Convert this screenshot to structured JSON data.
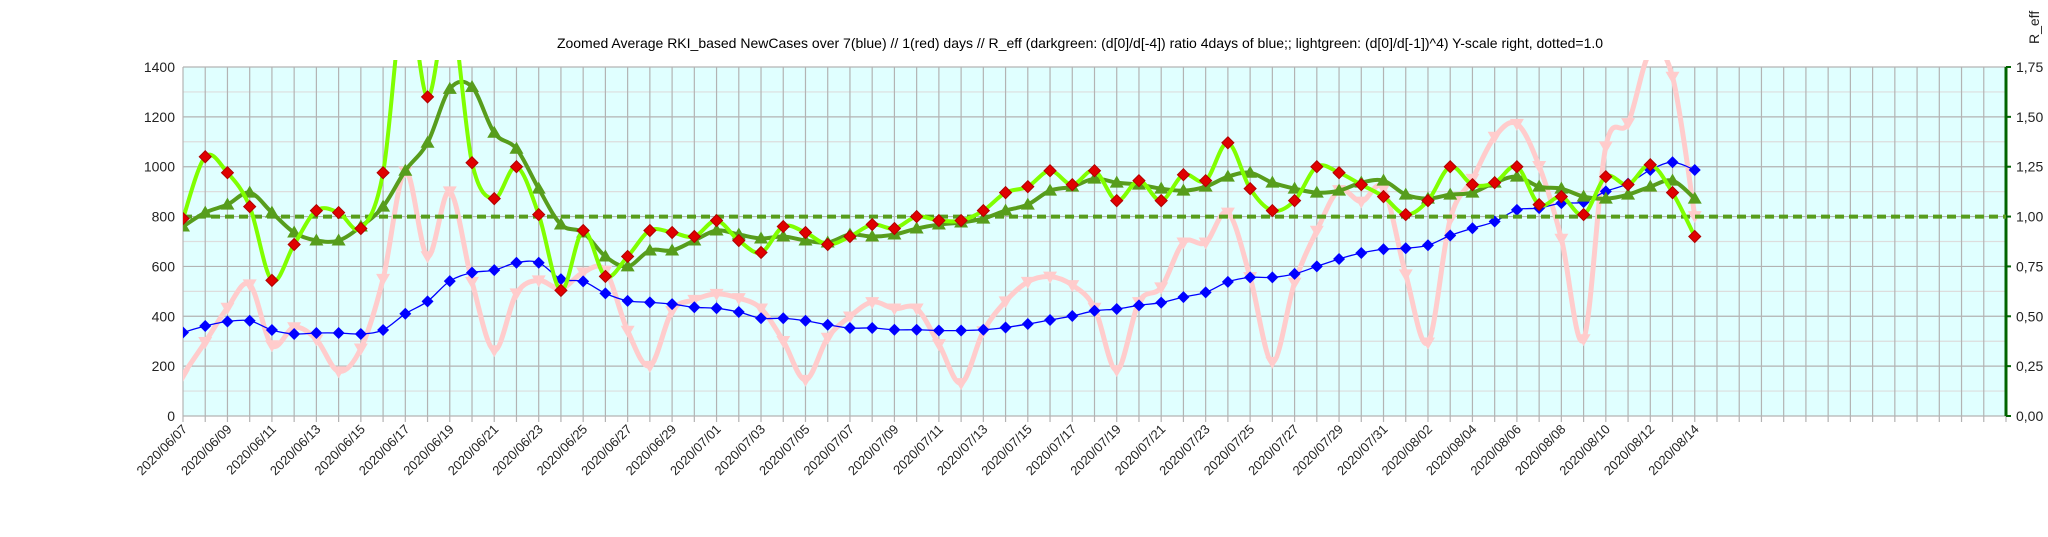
{
  "chart_data": {
    "type": "line",
    "title": "Zoomed Average RKI_based NewCases over 7(blue) // 1(red) days //  R_eff (darkgreen: (d[0]/d[-4]) ratio 4days of blue;; lightgreen: (d[0]/d[-1])^4) Y-scale right, dotted=1.0",
    "y2label": "R_eff",
    "ylim": [
      0,
      1400
    ],
    "yticks": [
      "0",
      "200",
      "400",
      "600",
      "800",
      "1000",
      "1200",
      "1400"
    ],
    "y2lim": [
      0,
      1.75
    ],
    "y2ticks": [
      "0,00",
      "0,25",
      "0,50",
      "0,75",
      "1,00",
      "1,25",
      "1,50",
      "1,75"
    ],
    "xlim": [
      "2020/06/07",
      "2020/08/28"
    ],
    "grid": true,
    "reference_line": {
      "axis": "right",
      "value": 1.0,
      "style": "dotted",
      "color": "#579d1c"
    },
    "colors": {
      "plot_background": "#e0ffff",
      "blue": "#0000ff",
      "pink": "#ffcccc",
      "lightgreen": "#80ff00",
      "darkgreen": "#579d1c",
      "red_marker": "#e00000",
      "right_axis": "#006400"
    },
    "x": [
      "2020/06/07",
      "2020/06/08",
      "2020/06/09",
      "2020/06/10",
      "2020/06/11",
      "2020/06/12",
      "2020/06/13",
      "2020/06/14",
      "2020/06/15",
      "2020/06/16",
      "2020/06/17",
      "2020/06/18",
      "2020/06/19",
      "2020/06/20",
      "2020/06/21",
      "2020/06/22",
      "2020/06/23",
      "2020/06/24",
      "2020/06/25",
      "2020/06/26",
      "2020/06/27",
      "2020/06/28",
      "2020/06/29",
      "2020/06/30",
      "2020/07/01",
      "2020/07/02",
      "2020/07/03",
      "2020/07/04",
      "2020/07/05",
      "2020/07/06",
      "2020/07/07",
      "2020/07/08",
      "2020/07/09",
      "2020/07/10",
      "2020/07/11",
      "2020/07/12",
      "2020/07/13",
      "2020/07/14",
      "2020/07/15",
      "2020/07/16",
      "2020/07/17",
      "2020/07/18",
      "2020/07/19",
      "2020/07/20",
      "2020/07/21",
      "2020/07/22",
      "2020/07/23",
      "2020/07/24",
      "2020/07/25",
      "2020/07/26",
      "2020/07/27",
      "2020/07/28",
      "2020/07/29",
      "2020/07/30",
      "2020/07/31",
      "2020/08/01",
      "2020/08/02",
      "2020/08/03",
      "2020/08/04",
      "2020/08/05",
      "2020/08/06",
      "2020/08/07",
      "2020/08/08",
      "2020/08/09",
      "2020/08/10",
      "2020/08/11",
      "2020/08/12",
      "2020/08/13",
      "2020/08/14"
    ],
    "xtick_labels": [
      "2020/06/07",
      "2020/06/09",
      "2020/06/11",
      "2020/06/13",
      "2020/06/15",
      "2020/06/17",
      "2020/06/19",
      "2020/06/21",
      "2020/06/23",
      "2020/06/25",
      "2020/06/27",
      "2020/06/29",
      "2020/07/01",
      "2020/07/03",
      "2020/07/05",
      "2020/07/07",
      "2020/07/09",
      "2020/07/11",
      "2020/07/13",
      "2020/07/15",
      "2020/07/17",
      "2020/07/19",
      "2020/07/21",
      "2020/07/23",
      "2020/07/25",
      "2020/07/27",
      "2020/07/29",
      "2020/07/31",
      "2020/08/02",
      "2020/08/04",
      "2020/08/06",
      "2020/08/08",
      "2020/08/10",
      "2020/08/12",
      "2020/08/14"
    ],
    "series": [
      {
        "key": "pink",
        "axis": "left",
        "marker": "triangle-down",
        "values": [
          166,
          297,
          434,
          528,
          284,
          356,
          307,
          179,
          271,
          550,
          981,
          641,
          901,
          538,
          264,
          492,
          544,
          510,
          576,
          583,
          342,
          201,
          421,
          466,
          490,
          473,
          431,
          301,
          145,
          314,
          399,
          457,
          431,
          431,
          288,
          132,
          340,
          460,
          538,
          559,
          525,
          434,
          184,
          457,
          516,
          696,
          696,
          816,
          557,
          217,
          535,
          743,
          906,
          860,
          912,
          568,
          295,
          789,
          951,
          1120,
          1172,
          1003,
          711,
          308,
          1081,
          1175,
          1460,
          1361,
          802
        ]
      },
      {
        "key": "blue",
        "axis": "left",
        "marker": "diamond",
        "values": [
          335,
          361,
          379,
          382,
          345,
          329,
          333,
          333,
          329,
          345,
          410,
          460,
          541,
          575,
          585,
          615,
          615,
          549,
          540,
          492,
          462,
          456,
          449,
          436,
          432,
          417,
          392,
          392,
          382,
          366,
          353,
          353,
          346,
          346,
          343,
          343,
          346,
          355,
          369,
          385,
          401,
          422,
          429,
          444,
          455,
          477,
          496,
          538,
          556,
          556,
          570,
          600,
          630,
          654,
          669,
          673,
          685,
          724,
          753,
          780,
          827,
          834,
          854,
          858,
          901,
          932,
          987,
          1018,
          987
        ]
      },
      {
        "key": "darkgreen",
        "axis": "right",
        "marker": "triangle-up",
        "values": [
          0.95,
          1.02,
          1.06,
          1.12,
          1.02,
          0.92,
          0.88,
          0.88,
          0.95,
          1.05,
          1.23,
          1.37,
          1.64,
          1.65,
          1.42,
          1.34,
          1.14,
          0.96,
          0.92,
          0.8,
          0.75,
          0.83,
          0.83,
          0.88,
          0.93,
          0.91,
          0.89,
          0.9,
          0.88,
          0.87,
          0.91,
          0.9,
          0.91,
          0.94,
          0.96,
          0.97,
          0.99,
          1.03,
          1.06,
          1.13,
          1.15,
          1.19,
          1.17,
          1.16,
          1.14,
          1.13,
          1.15,
          1.2,
          1.22,
          1.17,
          1.14,
          1.12,
          1.13,
          1.17,
          1.18,
          1.11,
          1.09,
          1.11,
          1.12,
          1.17,
          1.2,
          1.15,
          1.14,
          1.1,
          1.09,
          1.11,
          1.15,
          1.18,
          1.09
        ]
      },
      {
        "key": "lightgreen",
        "axis": "right",
        "marker": "red-diamond",
        "values": [
          0.99,
          1.3,
          1.22,
          1.05,
          0.68,
          0.86,
          1.03,
          1.02,
          0.94,
          1.22,
          2.13,
          1.6,
          2.06,
          1.27,
          1.09,
          1.25,
          1.01,
          0.63,
          0.93,
          0.7,
          0.8,
          0.93,
          0.92,
          0.9,
          0.98,
          0.88,
          0.82,
          0.95,
          0.92,
          0.86,
          0.9,
          0.96,
          0.94,
          1.0,
          0.98,
          0.98,
          1.03,
          1.12,
          1.15,
          1.23,
          1.16,
          1.23,
          1.08,
          1.18,
          1.08,
          1.21,
          1.18,
          1.37,
          1.14,
          1.03,
          1.08,
          1.25,
          1.22,
          1.16,
          1.1,
          1.01,
          1.08,
          1.25,
          1.16,
          1.17,
          1.25,
          1.06,
          1.1,
          1.01,
          1.2,
          1.16,
          1.26,
          1.12,
          0.9
        ]
      }
    ]
  }
}
